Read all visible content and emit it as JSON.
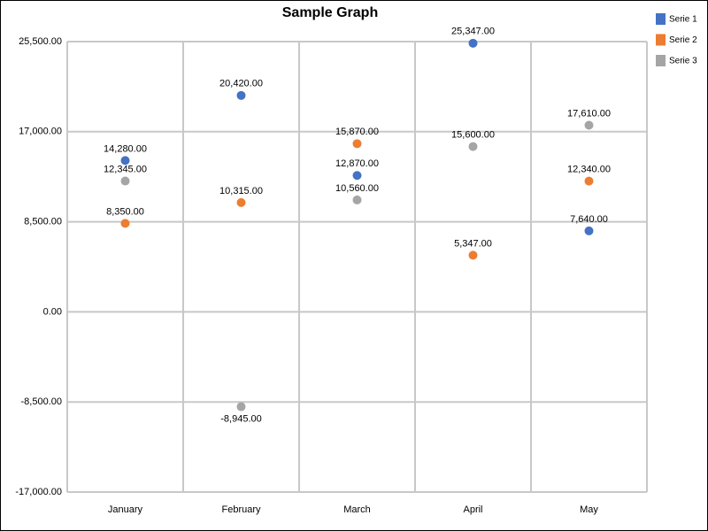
{
  "chart_data": {
    "type": "scatter",
    "title": "Sample Graph",
    "title_color": "#0000cc",
    "categories": [
      "January",
      "February",
      "March",
      "April",
      "May"
    ],
    "series": [
      {
        "name": "Serie 1",
        "color": "#4472c4",
        "values": [
          14280,
          20420,
          12870,
          25347,
          7640
        ],
        "value_labels": [
          "14,280.00",
          "20,420.00",
          "12,870.00",
          "25,347.00",
          "7,640.00"
        ]
      },
      {
        "name": "Serie 2",
        "color": "#ed7d31",
        "values": [
          8350,
          10315,
          15870,
          5347,
          12340
        ],
        "value_labels": [
          "8,350.00",
          "10,315.00",
          "15,870.00",
          "5,347.00",
          "12,340.00"
        ]
      },
      {
        "name": "Serie 3",
        "color": "#a5a5a5",
        "values": [
          12345,
          -8945,
          10560,
          15600,
          17610
        ],
        "value_labels": [
          "12,345.00",
          "-8,945.00",
          "10,560.00",
          "15,600.00",
          "17,610.00"
        ]
      }
    ],
    "ylim": [
      -17000,
      25500
    ],
    "yticks": [
      {
        "value": -17000,
        "label": "-17,000.00"
      },
      {
        "value": -8500,
        "label": "-8,500.00"
      },
      {
        "value": 0,
        "label": "0.00"
      },
      {
        "value": 8500,
        "label": "8,500.00"
      },
      {
        "value": 17000,
        "label": "17,000.00"
      },
      {
        "value": 25500,
        "label": "25,500.00"
      }
    ],
    "grid": true,
    "legend": "top-right"
  }
}
